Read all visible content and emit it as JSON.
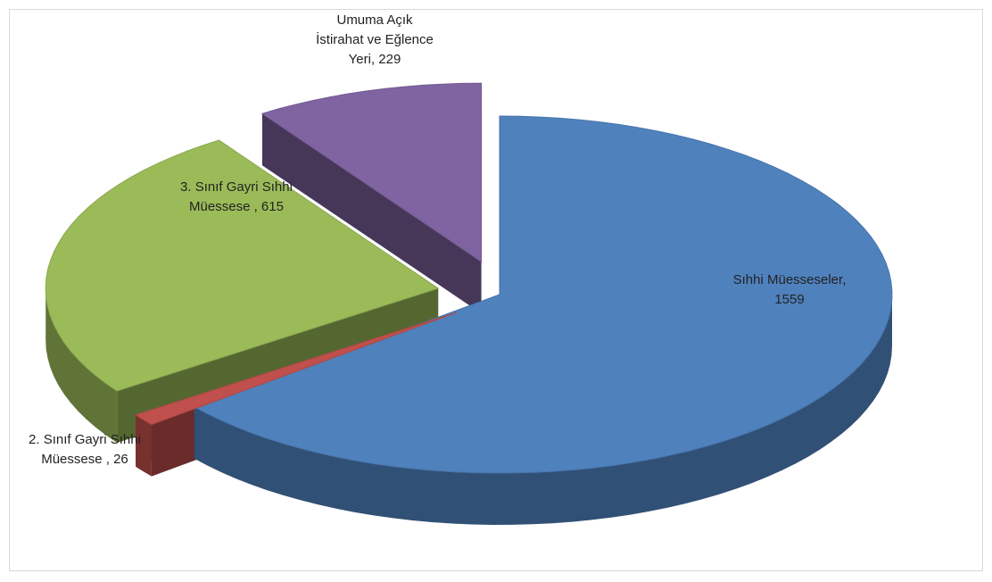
{
  "chart_data": {
    "type": "pie",
    "style": "3d-exploded",
    "legend": "none",
    "series": [
      {
        "slices": [
          {
            "label_lines": [
              "Sıhhi Müesseseler,",
              "1559"
            ],
            "category": "Sıhhi Müesseseler",
            "value": 1559,
            "color": "#4f81bd"
          },
          {
            "label_lines": [
              "2. Sınıf Gayri Sıhhi",
              "Müessese , 26"
            ],
            "category": "2. Sınıf Gayri Sıhhi Müessese",
            "value": 26,
            "color": "#c0504d"
          },
          {
            "label_lines": [
              "3. Sınıf Gayri Sıhhi",
              "Müessese , 615"
            ],
            "category": "3. Sınıf Gayri Sıhhi Müessese",
            "value": 615,
            "color": "#9bbb59"
          },
          {
            "label_lines": [
              "Umuma Açık",
              "İstirahat ve Eğlence",
              "Yeri, 229"
            ],
            "category": "Umuma Açık İstirahat ve Eğlence Yeri",
            "value": 229,
            "color": "#8064a2"
          }
        ]
      }
    ]
  }
}
